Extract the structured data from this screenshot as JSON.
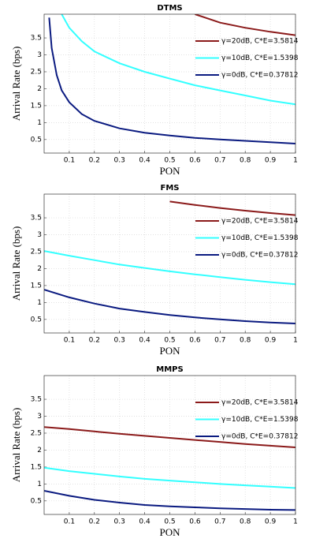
{
  "chart_data": [
    {
      "type": "line",
      "title": "DTMS",
      "x_label": "PON",
      "y_label": "Arrival Rate  (bps)",
      "x": [
        0.02,
        0.03,
        0.05,
        0.07,
        0.1,
        0.15,
        0.2,
        0.3,
        0.4,
        0.5,
        0.6,
        0.7,
        0.8,
        0.9,
        1
      ],
      "series": [
        {
          "name": "γ=20dB, C*E=3.5814",
          "color": "#8b1a1a",
          "values": [
            null,
            null,
            null,
            null,
            null,
            null,
            null,
            null,
            null,
            null,
            4.2,
            3.95,
            3.8,
            3.68,
            3.58
          ]
        },
        {
          "name": "γ=10dB, C*E=1.5398",
          "color": "#33ffff",
          "values": [
            null,
            null,
            null,
            4.2,
            3.8,
            3.4,
            3.1,
            2.75,
            2.5,
            2.3,
            2.1,
            1.95,
            1.8,
            1.65,
            1.54
          ]
        },
        {
          "name": "γ=0dB, C*E=0.37812",
          "color": "#0a1a80",
          "values": [
            4.1,
            3.2,
            2.4,
            1.95,
            1.6,
            1.25,
            1.05,
            0.83,
            0.7,
            0.62,
            0.55,
            0.5,
            0.46,
            0.42,
            0.38
          ]
        }
      ],
      "xlim": [
        0,
        1
      ],
      "ylim": [
        0.1,
        4.2
      ],
      "xticks": [
        0.1,
        0.2,
        0.3,
        0.4,
        0.5,
        0.6,
        0.7,
        0.8,
        0.9,
        1
      ],
      "yticks": [
        0.5,
        1,
        1.5,
        2,
        2.5,
        3,
        3.5
      ],
      "grid": true,
      "legend": "upper right"
    },
    {
      "type": "line",
      "title": "FMS",
      "x_label": "PON",
      "y_label": "Arrival Rate  (bps)",
      "x": [
        0,
        0.1,
        0.2,
        0.3,
        0.4,
        0.5,
        0.6,
        0.7,
        0.8,
        0.9,
        1
      ],
      "series": [
        {
          "name": "γ=20dB, C*E=3.5814",
          "color": "#8b1a1a",
          "values": [
            null,
            null,
            null,
            null,
            null,
            3.98,
            3.88,
            3.79,
            3.71,
            3.64,
            3.58
          ]
        },
        {
          "name": "γ=10dB, C*E=1.5398",
          "color": "#33ffff",
          "values": [
            2.52,
            2.38,
            2.25,
            2.12,
            2.02,
            1.92,
            1.83,
            1.75,
            1.67,
            1.6,
            1.54
          ]
        },
        {
          "name": "γ=0dB, C*E=0.37812",
          "color": "#0a1a80",
          "values": [
            1.38,
            1.15,
            0.97,
            0.82,
            0.72,
            0.63,
            0.56,
            0.5,
            0.45,
            0.41,
            0.38
          ]
        }
      ],
      "xlim": [
        0,
        1
      ],
      "ylim": [
        0.1,
        4.2
      ],
      "xticks": [
        0.1,
        0.2,
        0.3,
        0.4,
        0.5,
        0.6,
        0.7,
        0.8,
        0.9,
        1
      ],
      "yticks": [
        0.5,
        1,
        1.5,
        2,
        2.5,
        3,
        3.5
      ],
      "grid": true,
      "legend": "upper right"
    },
    {
      "type": "line",
      "title": "MMPS",
      "x_label": "PON",
      "y_label": "Arrival Rate  (bps)",
      "x": [
        0,
        0.1,
        0.2,
        0.3,
        0.4,
        0.5,
        0.6,
        0.7,
        0.8,
        0.9,
        1
      ],
      "series": [
        {
          "name": "γ=20dB, C*E=3.5814",
          "color": "#8b1a1a",
          "values": [
            2.68,
            2.62,
            2.55,
            2.48,
            2.42,
            2.36,
            2.3,
            2.24,
            2.18,
            2.13,
            2.08
          ]
        },
        {
          "name": "γ=10dB, C*E=1.5398",
          "color": "#33ffff",
          "values": [
            1.48,
            1.38,
            1.3,
            1.22,
            1.15,
            1.1,
            1.05,
            1.0,
            0.96,
            0.92,
            0.88
          ]
        },
        {
          "name": "γ=0dB, C*E=0.37812",
          "color": "#0a1a80",
          "values": [
            0.8,
            0.65,
            0.53,
            0.45,
            0.38,
            0.34,
            0.31,
            0.28,
            0.26,
            0.24,
            0.23
          ]
        }
      ],
      "xlim": [
        0,
        1
      ],
      "ylim": [
        0.1,
        4.2
      ],
      "xticks": [
        0.1,
        0.2,
        0.3,
        0.4,
        0.5,
        0.6,
        0.7,
        0.8,
        0.9,
        1
      ],
      "yticks": [
        0.5,
        1,
        1.5,
        2,
        2.5,
        3,
        3.5
      ],
      "grid": true,
      "legend": "upper right"
    }
  ]
}
